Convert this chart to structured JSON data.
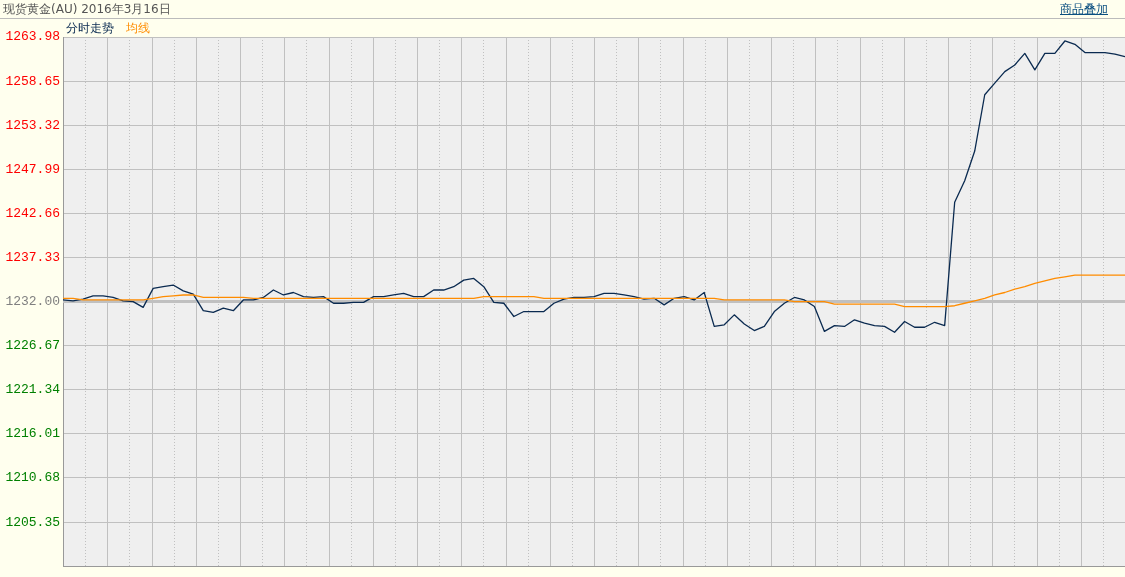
{
  "chart_data": {
    "type": "line",
    "title": "现货黄金(AU) 2016年3月16日",
    "annotations": [
      "商品叠加"
    ],
    "categories": [
      null,
      null,
      null,
      null,
      null,
      null,
      null,
      null,
      null,
      null,
      null,
      null,
      null,
      null,
      null,
      null,
      null,
      null,
      null,
      null,
      null,
      null,
      null,
      null,
      null,
      null,
      null,
      null,
      null,
      null,
      null,
      null,
      null,
      null,
      null,
      null,
      null,
      null,
      null,
      null,
      null,
      null,
      null,
      null,
      null,
      null,
      null,
      null,
      null,
      null,
      null,
      null,
      null,
      null,
      null,
      null,
      null,
      null,
      null,
      null,
      null,
      null,
      null,
      null,
      null,
      null,
      null,
      null,
      null,
      null,
      null,
      null,
      null,
      null,
      null,
      null,
      null,
      null,
      null,
      null,
      null,
      null,
      null,
      null,
      null,
      null,
      null,
      null,
      null,
      null,
      null,
      null,
      null,
      null,
      null,
      null,
      null,
      null,
      null,
      null,
      null,
      null,
      null,
      null,
      null,
      null,
      null
    ],
    "series": [
      {
        "name": "分时走势",
        "color": "#0a2a50",
        "values": [
          1232.2,
          1232.1,
          1232.3,
          1232.7,
          1232.7,
          1232.5,
          1232.1,
          1232.0,
          1231.3,
          1233.6,
          1233.8,
          1234.0,
          1233.3,
          1232.9,
          1230.9,
          1230.7,
          1231.2,
          1230.9,
          1232.2,
          1232.2,
          1232.5,
          1233.4,
          1232.8,
          1233.1,
          1232.6,
          1232.5,
          1232.6,
          1231.8,
          1231.8,
          1231.9,
          1231.9,
          1232.6,
          1232.6,
          1232.8,
          1233.0,
          1232.6,
          1232.6,
          1233.4,
          1233.4,
          1233.8,
          1234.6,
          1234.8,
          1233.8,
          1231.9,
          1231.8,
          1230.2,
          1230.8,
          1230.8,
          1230.8,
          1231.8,
          1232.3,
          1232.5,
          1232.5,
          1232.6,
          1233.0,
          1233.0,
          1232.8,
          1232.6,
          1232.3,
          1232.4,
          1231.6,
          1232.4,
          1232.6,
          1232.2,
          1233.1,
          1229.0,
          1229.2,
          1230.4,
          1229.3,
          1228.5,
          1229.0,
          1230.8,
          1231.8,
          1232.5,
          1232.2,
          1231.4,
          1228.4,
          1229.1,
          1229.0,
          1229.8,
          1229.4,
          1229.1,
          1229.0,
          1228.3,
          1229.6,
          1228.9,
          1228.9,
          1229.5,
          1229.1,
          1244.0,
          1246.6,
          1250.2,
          1257.0,
          1258.4,
          1259.8,
          1260.6,
          1262.0,
          1260.0,
          1262.0,
          1262.0,
          1263.5,
          1263.1,
          1262.1,
          1262.1,
          1262.1,
          1261.9,
          1261.6
        ]
      },
      {
        "name": "均线",
        "color": "#ff8c00",
        "values": [
          1232.4,
          1232.4,
          1232.2,
          1232.2,
          1232.2,
          1232.2,
          1232.2,
          1232.2,
          1232.2,
          1232.4,
          1232.6,
          1232.7,
          1232.8,
          1232.8,
          1232.5,
          1232.5,
          1232.5,
          1232.5,
          1232.5,
          1232.4,
          1232.4,
          1232.4,
          1232.4,
          1232.4,
          1232.4,
          1232.4,
          1232.4,
          1232.4,
          1232.4,
          1232.4,
          1232.4,
          1232.4,
          1232.4,
          1232.4,
          1232.4,
          1232.4,
          1232.4,
          1232.4,
          1232.4,
          1232.4,
          1232.4,
          1232.4,
          1232.6,
          1232.6,
          1232.6,
          1232.6,
          1232.6,
          1232.6,
          1232.4,
          1232.4,
          1232.4,
          1232.4,
          1232.4,
          1232.4,
          1232.4,
          1232.4,
          1232.4,
          1232.4,
          1232.4,
          1232.4,
          1232.4,
          1232.4,
          1232.4,
          1232.4,
          1232.4,
          1232.4,
          1232.2,
          1232.2,
          1232.2,
          1232.2,
          1232.2,
          1232.2,
          1232.2,
          1232.0,
          1232.0,
          1232.0,
          1232.0,
          1231.7,
          1231.7,
          1231.7,
          1231.7,
          1231.7,
          1231.7,
          1231.7,
          1231.4,
          1231.4,
          1231.4,
          1231.4,
          1231.4,
          1231.5,
          1231.8,
          1232.1,
          1232.4,
          1232.8,
          1233.1,
          1233.5,
          1233.8,
          1234.2,
          1234.5,
          1234.8,
          1235.0,
          1235.2,
          1235.2,
          1235.2,
          1235.2,
          1235.2,
          1235.2
        ]
      }
    ],
    "ylim": [
      1200.02,
      1263.98
    ],
    "yticks": [
      1263.98,
      1258.65,
      1253.32,
      1247.99,
      1242.66,
      1237.33,
      {
        "value": 1232,
        "label": "1232.00"
      },
      1226.67,
      1221.34,
      1216.01,
      1210.68,
      1205.35
    ],
    "ref_lines": [
      {
        "axis": "y",
        "value": 1232,
        "color": "#c0c0c0"
      }
    ],
    "grid": true,
    "legend": "top left",
    "tick_labels": "y"
  }
}
